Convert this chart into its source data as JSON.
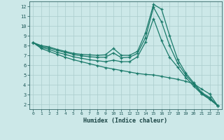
{
  "xlabel": "Humidex (Indice chaleur)",
  "background_color": "#cce8e8",
  "grid_color": "#aacccc",
  "line_color": "#1a7a6a",
  "xlim": [
    -0.5,
    23.5
  ],
  "ylim": [
    1.5,
    12.5
  ],
  "yticks": [
    2,
    3,
    4,
    5,
    6,
    7,
    8,
    9,
    10,
    11,
    12
  ],
  "xticks": [
    0,
    1,
    2,
    3,
    4,
    5,
    6,
    7,
    8,
    9,
    10,
    11,
    12,
    13,
    14,
    15,
    16,
    17,
    18,
    19,
    20,
    21,
    22,
    23
  ],
  "line1_x": [
    0,
    1,
    2,
    3,
    4,
    5,
    6,
    7,
    8,
    9,
    10,
    11,
    12,
    13,
    14,
    15,
    16,
    17,
    18,
    19,
    20,
    21,
    22,
    23
  ],
  "line1_y": [
    8.3,
    8.0,
    7.85,
    7.6,
    7.4,
    7.2,
    7.1,
    7.05,
    7.0,
    7.05,
    7.7,
    7.0,
    7.0,
    7.4,
    9.3,
    12.2,
    11.7,
    9.0,
    6.6,
    5.2,
    4.2,
    3.2,
    2.7,
    1.85
  ],
  "line2_x": [
    0,
    1,
    2,
    3,
    4,
    5,
    6,
    7,
    8,
    9,
    10,
    11,
    12,
    13,
    14,
    15,
    16,
    17,
    18,
    19,
    20,
    21,
    22,
    23
  ],
  "line2_y": [
    8.3,
    7.9,
    7.75,
    7.5,
    7.3,
    7.1,
    6.95,
    6.85,
    6.8,
    6.8,
    7.25,
    6.75,
    6.8,
    7.2,
    8.8,
    11.9,
    10.4,
    8.0,
    6.2,
    5.0,
    4.05,
    3.1,
    2.6,
    1.85
  ],
  "line3_x": [
    0,
    1,
    2,
    3,
    4,
    5,
    6,
    7,
    8,
    9,
    10,
    11,
    12,
    13,
    14,
    15,
    16,
    17,
    18,
    19,
    20,
    21,
    22,
    23
  ],
  "line3_y": [
    8.3,
    7.8,
    7.6,
    7.3,
    7.1,
    6.85,
    6.7,
    6.55,
    6.45,
    6.35,
    6.5,
    6.35,
    6.35,
    6.85,
    8.35,
    10.75,
    8.5,
    6.8,
    5.8,
    4.75,
    3.85,
    3.05,
    2.5,
    1.85
  ],
  "line4_x": [
    0,
    1,
    2,
    3,
    4,
    5,
    6,
    7,
    8,
    9,
    10,
    11,
    12,
    13,
    14,
    15,
    16,
    17,
    18,
    19,
    20,
    21,
    22,
    23
  ],
  "line4_y": [
    8.3,
    7.7,
    7.4,
    7.1,
    6.8,
    6.55,
    6.35,
    6.15,
    5.95,
    5.75,
    5.6,
    5.45,
    5.3,
    5.15,
    5.05,
    5.0,
    4.85,
    4.7,
    4.55,
    4.35,
    4.1,
    3.55,
    3.05,
    1.85
  ]
}
